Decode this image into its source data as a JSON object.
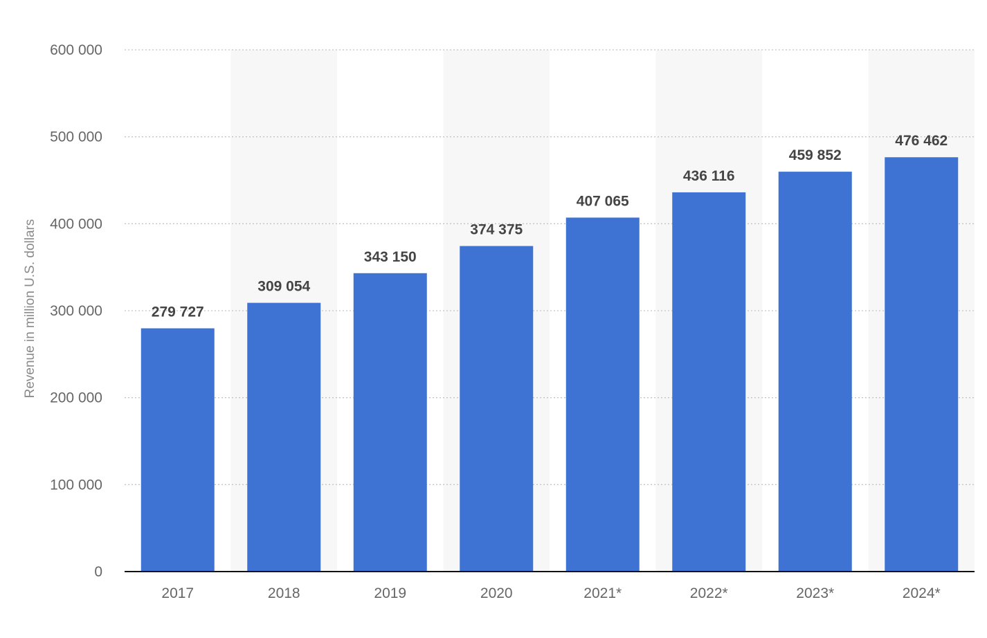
{
  "chart_data": {
    "type": "bar",
    "title": "",
    "xlabel": "",
    "ylabel": "Revenue in million U.S. dollars",
    "categories": [
      "2017",
      "2018",
      "2019",
      "2020",
      "2021*",
      "2022*",
      "2023*",
      "2024*"
    ],
    "values": [
      279727,
      309054,
      343150,
      374375,
      407065,
      436116,
      459852,
      476462
    ],
    "value_labels": [
      "279 727",
      "309 054",
      "343 150",
      "374 375",
      "407 065",
      "436 116",
      "459 852",
      "476 462"
    ],
    "ylim": [
      0,
      600000
    ],
    "yticks": [
      0,
      100000,
      200000,
      300000,
      400000,
      500000,
      600000
    ],
    "ytick_labels": [
      "0",
      "100 000",
      "200 000",
      "300 000",
      "400 000",
      "500 000",
      "600 000"
    ],
    "grid": true,
    "legend": "none",
    "colors": {
      "bar": "#3f73d3",
      "band": "#f7f7f7"
    }
  }
}
